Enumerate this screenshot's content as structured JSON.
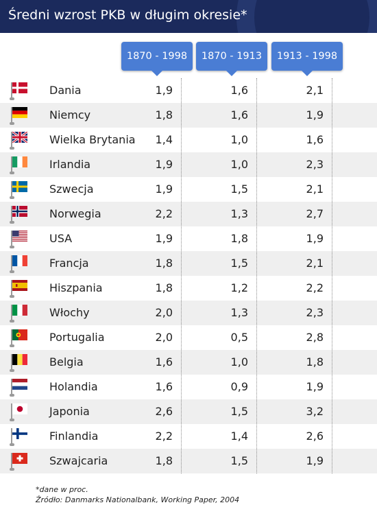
{
  "header": {
    "title": "Średni wzrost PKB w długim okresie*"
  },
  "chart_data": {
    "type": "table",
    "title": "Średni wzrost PKB w długim okresie*",
    "columns": [
      "1870 - 1998",
      "1870 - 1913",
      "1913 - 1998"
    ],
    "rows": [
      {
        "country": "Dania",
        "flag": "denmark-flag",
        "values": [
          "1,9",
          "1,6",
          "2,1"
        ]
      },
      {
        "country": "Niemcy",
        "flag": "germany-flag",
        "values": [
          "1,8",
          "1,6",
          "1,9"
        ]
      },
      {
        "country": "Wielka Brytania",
        "flag": "uk-flag",
        "values": [
          "1,4",
          "1,0",
          "1,6"
        ]
      },
      {
        "country": "Irlandia",
        "flag": "ireland-flag",
        "values": [
          "1,9",
          "1,0",
          "2,3"
        ]
      },
      {
        "country": "Szwecja",
        "flag": "sweden-flag",
        "values": [
          "1,9",
          "1,5",
          "2,1"
        ]
      },
      {
        "country": "Norwegia",
        "flag": "norway-flag",
        "values": [
          "2,2",
          "1,3",
          "2,7"
        ]
      },
      {
        "country": "USA",
        "flag": "usa-flag",
        "values": [
          "1,9",
          "1,8",
          "1,9"
        ]
      },
      {
        "country": "Francja",
        "flag": "france-flag",
        "values": [
          "1,8",
          "1,5",
          "2,1"
        ]
      },
      {
        "country": "Hiszpania",
        "flag": "spain-flag",
        "values": [
          "1,8",
          "1,2",
          "2,2"
        ]
      },
      {
        "country": "Włochy",
        "flag": "italy-flag",
        "values": [
          "2,0",
          "1,3",
          "2,3"
        ]
      },
      {
        "country": "Portugalia",
        "flag": "portugal-flag",
        "values": [
          "2,0",
          "0,5",
          "2,8"
        ]
      },
      {
        "country": "Belgia",
        "flag": "belgium-flag",
        "values": [
          "1,6",
          "1,0",
          "1,8"
        ]
      },
      {
        "country": "Holandia",
        "flag": "netherlands-flag",
        "values": [
          "1,6",
          "0,9",
          "1,9"
        ]
      },
      {
        "country": "Japonia",
        "flag": "japan-flag",
        "values": [
          "2,6",
          "1,5",
          "3,2"
        ]
      },
      {
        "country": "Finlandia",
        "flag": "finland-flag",
        "values": [
          "2,2",
          "1,4",
          "2,6"
        ]
      },
      {
        "country": "Szwajcaria",
        "flag": "switzerland-flag",
        "values": [
          "1,8",
          "1,5",
          "1,9"
        ]
      }
    ]
  },
  "footnote": {
    "note": "*dane w proc.",
    "source": "Źródło: Danmarks Nationalbank, Working Paper, 2004"
  },
  "colors": {
    "header_bg": "#1b2a5c",
    "column_header_bg": "#4a7dd4",
    "alt_row_bg": "#efefef"
  }
}
